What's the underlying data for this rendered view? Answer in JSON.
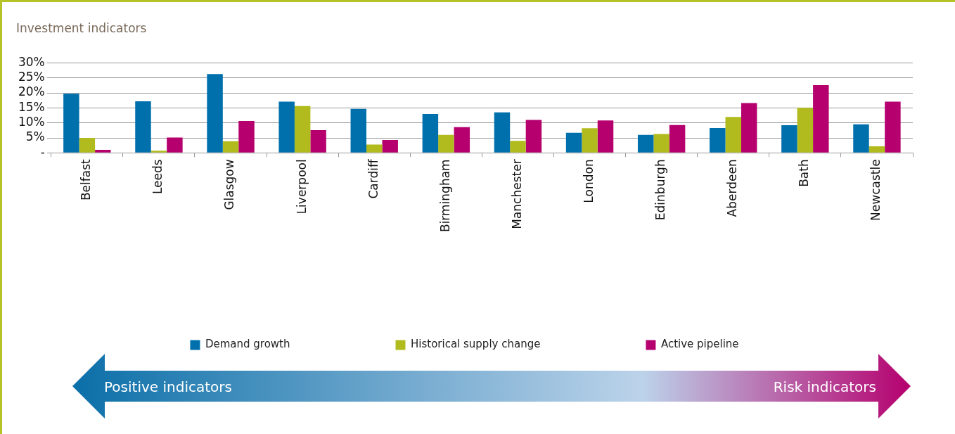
{
  "chart_data": {
    "type": "bar",
    "title": "Investment indicators",
    "categories": [
      "Belfast",
      "Leeds",
      "Glasgow",
      "Liverpool",
      "Cardiff",
      "Birmingham",
      "Manchester",
      "London",
      "Edinburgh",
      "Aberdeen",
      "Bath",
      "Newcastle"
    ],
    "series": [
      {
        "name": "Demand growth",
        "color": "#0070ad",
        "values": [
          19.7,
          17.2,
          26.3,
          17.1,
          14.7,
          13.0,
          13.5,
          6.7,
          6.0,
          8.3,
          9.2,
          9.5
        ]
      },
      {
        "name": "Historical supply change",
        "color": "#b2bb1e",
        "values": [
          5.0,
          0.7,
          3.9,
          15.6,
          2.8,
          6.0,
          4.0,
          8.2,
          6.3,
          12.0,
          15.0,
          2.2
        ]
      },
      {
        "name": "Active pipeline",
        "color": "#b5006e",
        "values": [
          1.0,
          5.1,
          10.6,
          7.6,
          4.3,
          8.6,
          11.0,
          10.8,
          9.3,
          16.6,
          22.6,
          17.1
        ]
      }
    ],
    "ylim": [
      0,
      30
    ],
    "yticks": [
      {
        "value": 0,
        "label": "-"
      },
      {
        "value": 5,
        "label": "5%"
      },
      {
        "value": 10,
        "label": "10%"
      },
      {
        "value": 15,
        "label": "15%"
      },
      {
        "value": 20,
        "label": "20%"
      },
      {
        "value": 25,
        "label": "25%"
      },
      {
        "value": 30,
        "label": "30%"
      }
    ],
    "grid": "y",
    "legend": "bottom",
    "annotations": [
      "Positive indicators",
      "Risk indicators"
    ]
  }
}
